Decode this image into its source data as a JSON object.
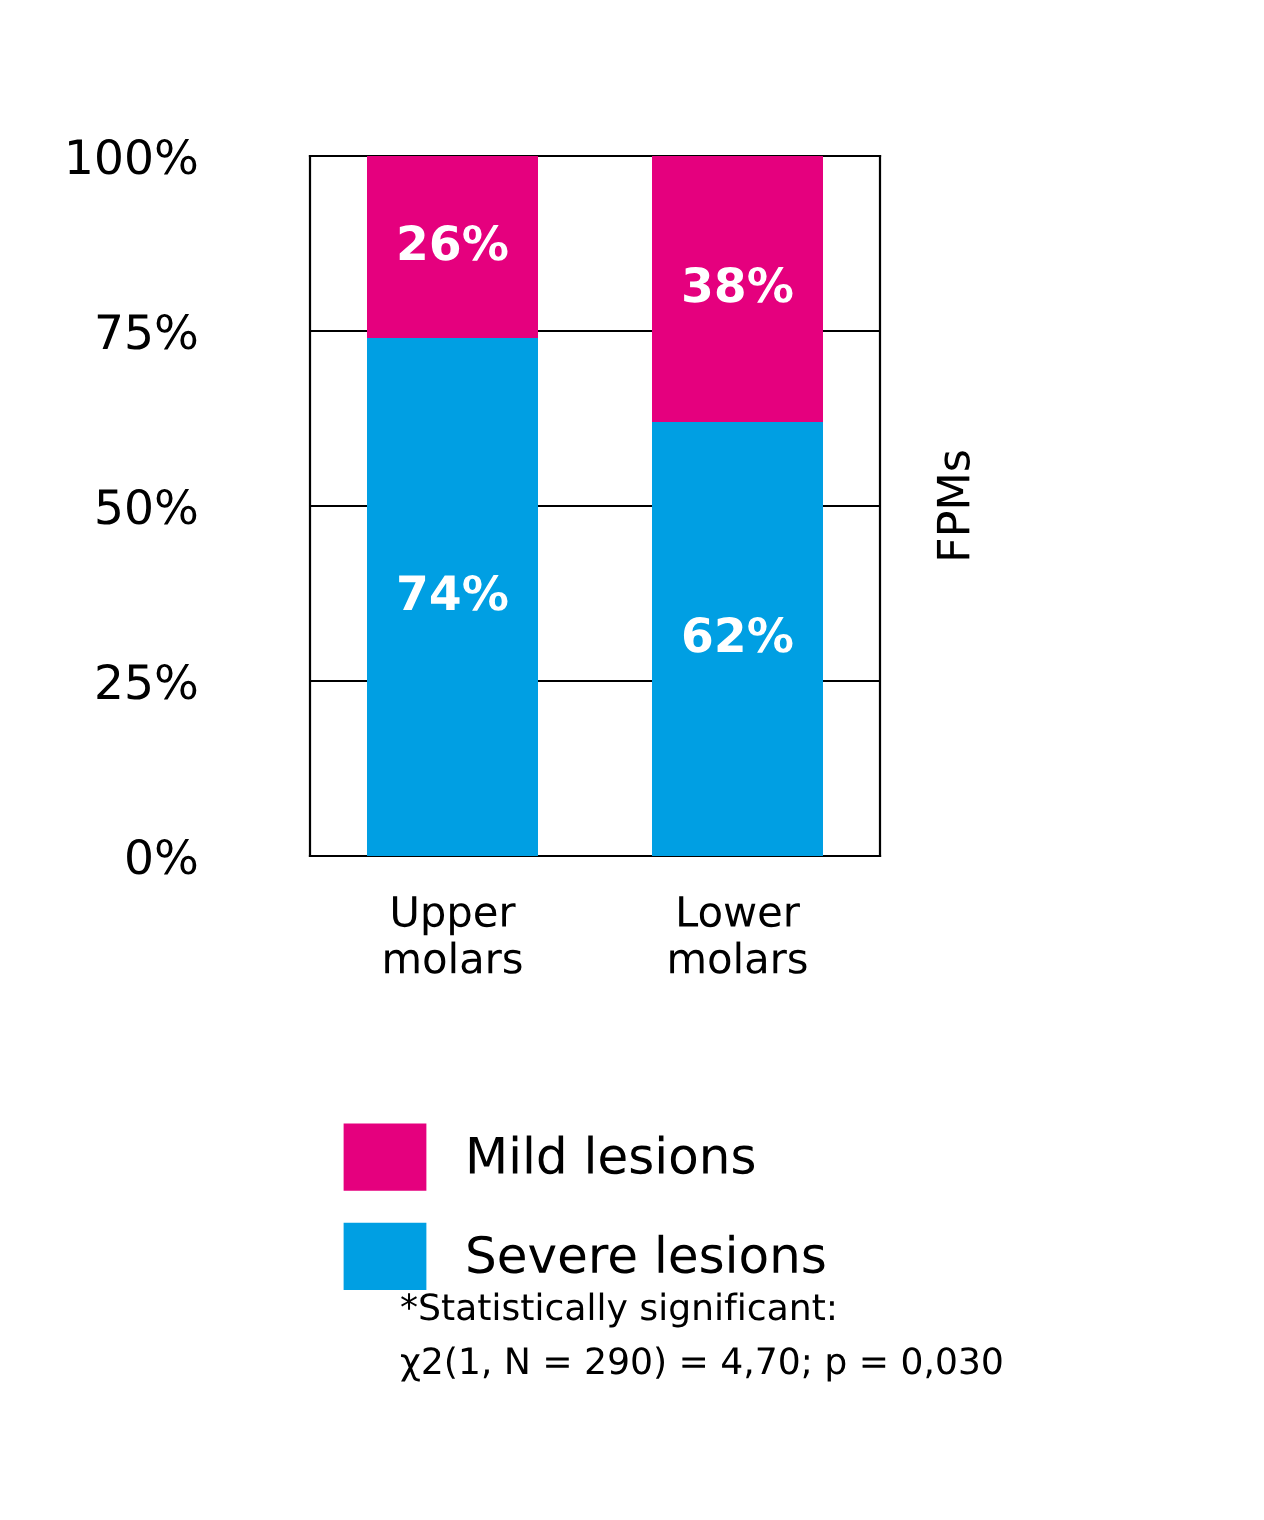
{
  "chart_data": {
    "type": "bar",
    "stacked": true,
    "ylabel": "FPMs",
    "categories": [
      "Upper\nmolars",
      "Lower\nmolars"
    ],
    "series": [
      {
        "name": "Severe lesions",
        "color": "#009fe3",
        "values": [
          74,
          62
        ],
        "value_labels": [
          "74%",
          "62%"
        ]
      },
      {
        "name": "Mild lesions",
        "color": "#e5007e",
        "values": [
          26,
          38
        ],
        "value_labels": [
          "26%",
          "38%"
        ]
      }
    ],
    "ylim": [
      0,
      100
    ],
    "yticks": [
      {
        "value": 0,
        "label": "0%"
      },
      {
        "value": 25,
        "label": "25%"
      },
      {
        "value": 50,
        "label": "50%"
      },
      {
        "value": 75,
        "label": "75%"
      },
      {
        "value": 100,
        "label": "100%"
      }
    ],
    "grid": "y",
    "legend": "bottom",
    "annotations": [
      "*Statistically significant:",
      "χ2(1, N = 290) = 4,70; p = 0,030"
    ]
  }
}
